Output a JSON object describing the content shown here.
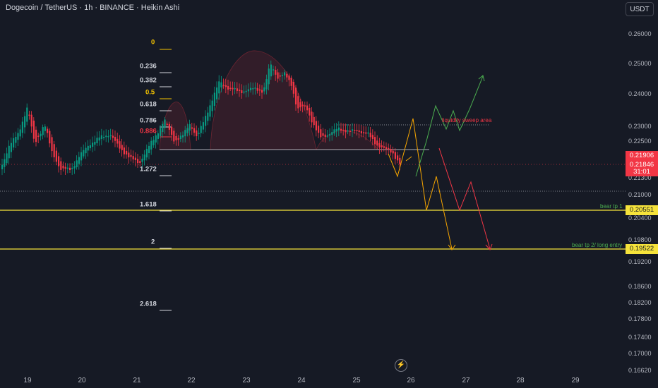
{
  "header": {
    "title": "Dogecoin / TetherUS · 1h · BINANCE · Heikin Ashi",
    "currency_button": "USDT"
  },
  "price_axis": {
    "ticks": [
      "0.26000",
      "0.25000",
      "0.24000",
      "0.23000",
      "0.22500",
      "0.21300",
      "0.21000",
      "0.20400",
      "0.19800",
      "0.19200",
      "0.18600",
      "0.18200",
      "0.17800",
      "0.17400",
      "0.17000",
      "0.16620"
    ],
    "labels": {
      "price_a": "0.21906",
      "price_b": "0.21846",
      "countdown": "31:01",
      "bear_tp1": "0.20551",
      "bear_tp2": "0.19522"
    }
  },
  "time_axis": {
    "ticks": [
      "19",
      "20",
      "21",
      "22",
      "23",
      "24",
      "25",
      "26",
      "27",
      "28",
      "29"
    ]
  },
  "fib_levels": [
    {
      "label": "0",
      "color": "#f5c400"
    },
    {
      "label": "0.236",
      "color": "#d1d4dc"
    },
    {
      "label": "0.382",
      "color": "#d1d4dc"
    },
    {
      "label": "0.5",
      "color": "#f5c400"
    },
    {
      "label": "0.618",
      "color": "#d1d4dc"
    },
    {
      "label": "0.786",
      "color": "#d1d4dc"
    },
    {
      "label": "0.886",
      "color": "#f23645"
    },
    {
      "label": "1.272",
      "color": "#d1d4dc"
    },
    {
      "label": "1.618",
      "color": "#d1d4dc"
    },
    {
      "label": "2",
      "color": "#d1d4dc"
    },
    {
      "label": "2.618",
      "color": "#d1d4dc"
    }
  ],
  "annotations": {
    "liquidity": "liquidity sweep area",
    "bear_tp1": "bear tp 1",
    "bear_tp2": "bear tp 2/ long entry"
  },
  "colors": {
    "background": "#161a25",
    "up_candle": "#089981",
    "down_candle": "#f23645",
    "fib_line_yellow": "#f6e33b",
    "projection_orange": "#f7a600",
    "projection_green": "#4caf50",
    "projection_red": "#f23645"
  },
  "icons": {
    "replay": "lightning-icon"
  }
}
